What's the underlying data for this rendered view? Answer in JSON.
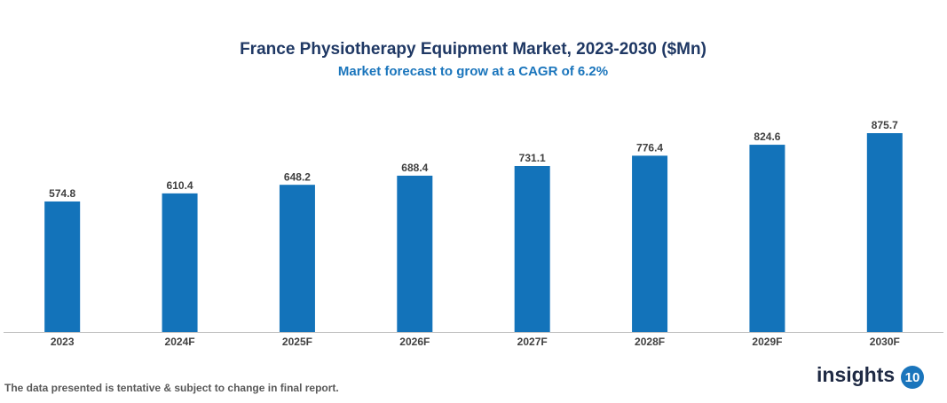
{
  "chart_data": {
    "type": "bar",
    "title": "France Physiotherapy Equipment Market, 2023-2030 ($Mn)",
    "subtitle": "Market forecast to grow at a CAGR of 6.2%",
    "categories": [
      "2023",
      "2024F",
      "2025F",
      "2026F",
      "2027F",
      "2028F",
      "2029F",
      "2030F"
    ],
    "values": [
      574.8,
      610.4,
      648.2,
      688.4,
      731.1,
      776.4,
      824.6,
      875.7
    ],
    "color": "#1373ba"
  },
  "footer": {
    "note": "The data presented is tentative & subject to change in final report.",
    "logo_text": "insights",
    "logo_badge": "10"
  }
}
